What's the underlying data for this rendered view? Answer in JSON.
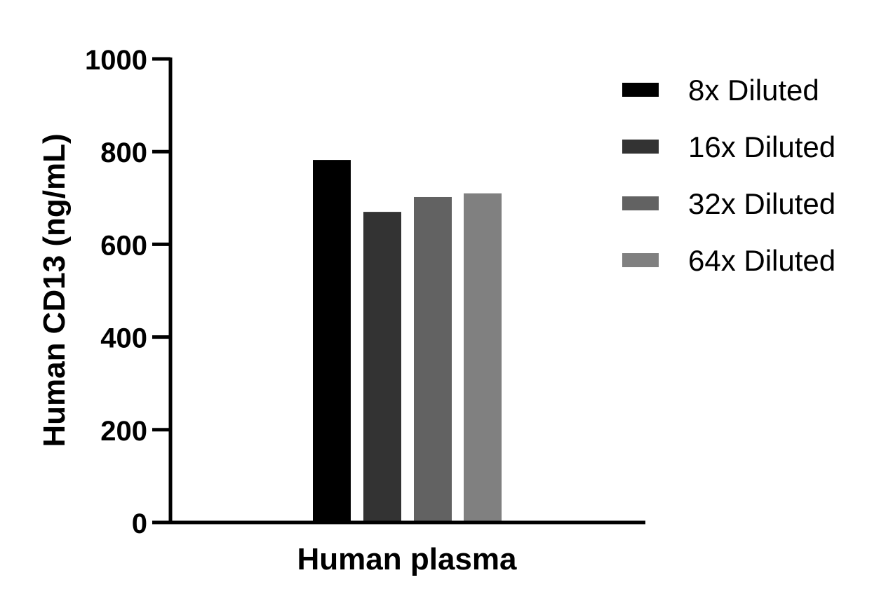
{
  "chart_data": {
    "type": "bar",
    "categories": [
      "Human plasma"
    ],
    "series": [
      {
        "name": "8x Diluted",
        "values": [
          782
        ],
        "color": "#000000"
      },
      {
        "name": "16x Diluted",
        "values": [
          670
        ],
        "color": "#333333"
      },
      {
        "name": "32x Diluted",
        "values": [
          702
        ],
        "color": "#626262"
      },
      {
        "name": "64x Diluted",
        "values": [
          710
        ],
        "color": "#808080"
      }
    ],
    "title": "",
    "xlabel": "Human plasma",
    "ylabel": "Human CD13 (ng/mL)",
    "ylim": [
      0,
      1000
    ],
    "yticks": [
      "0",
      "200",
      "400",
      "600",
      "800",
      "1000"
    ],
    "grid": false,
    "legend": "right"
  }
}
